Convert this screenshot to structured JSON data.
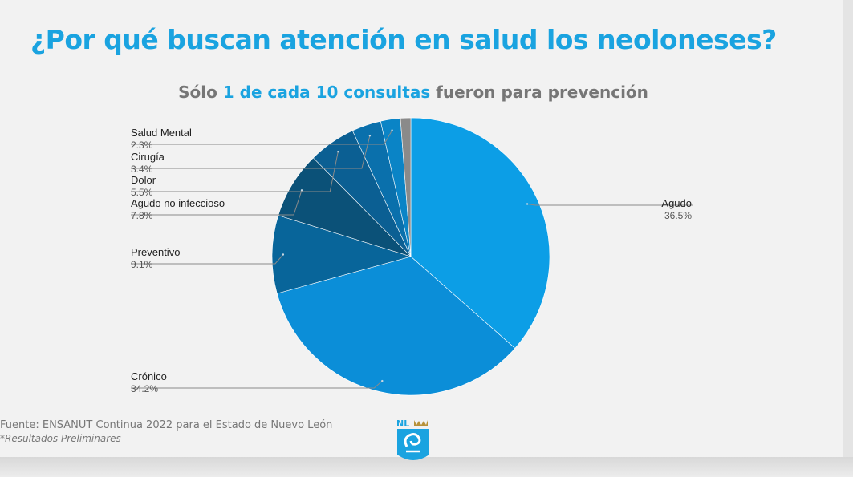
{
  "slide": {
    "title": "¿Por qué buscan atención en salud los neoloneses?",
    "subtitle_part1": "Sólo ",
    "subtitle_highlight": "1 de cada 10 consultas",
    "subtitle_part2": " fueron para prevención",
    "source_line": "Fuente: ENSANUT Continua 2022 para el Estado de Nuevo León",
    "source_note": "*Resultados Preliminares",
    "logo_text": "NL"
  },
  "colors": {
    "accent": "#1aa3e0",
    "subtitle_gray": "#767676"
  },
  "chart_data": {
    "type": "pie",
    "title": "",
    "slices": [
      {
        "label": "Agudo",
        "value": 36.5,
        "display": "36.5%",
        "color": "#0c9ee6",
        "side": "right"
      },
      {
        "label": "Crónico",
        "value": 34.2,
        "display": "34.2%",
        "color": "#0b8ed8",
        "side": "left"
      },
      {
        "label": "Preventivo",
        "value": 9.1,
        "display": "9.1%",
        "color": "#08659a",
        "side": "left"
      },
      {
        "label": "Agudo no infeccioso",
        "value": 7.8,
        "display": "7.8%",
        "color": "#0b5178",
        "side": "left"
      },
      {
        "label": "Dolor",
        "value": 5.5,
        "display": "5.5%",
        "color": "#0b5f93",
        "side": "left"
      },
      {
        "label": "Cirugía",
        "value": 3.4,
        "display": "3.4%",
        "color": "#0a70ac",
        "side": "left"
      },
      {
        "label": "Salud Mental",
        "value": 2.3,
        "display": "2.3%",
        "color": "#0a84c6",
        "side": "left"
      },
      {
        "label": "",
        "value": 1.2,
        "display": "",
        "color": "#8a8a8a",
        "side": "none"
      }
    ],
    "legend": "none (leader-line labels)"
  }
}
